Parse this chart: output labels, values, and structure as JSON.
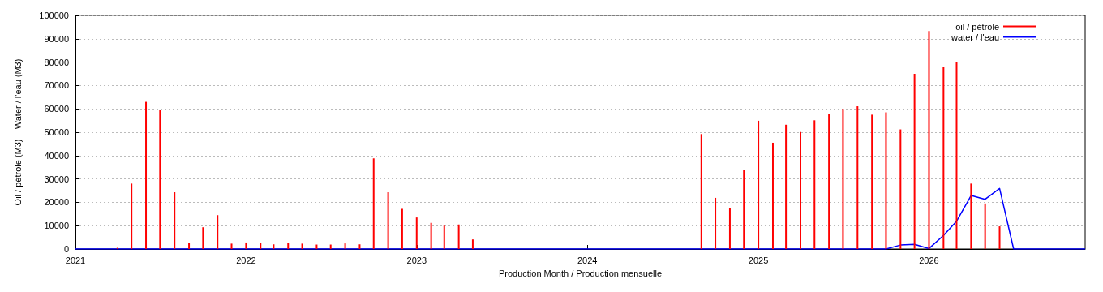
{
  "chart_data": {
    "type": "bar",
    "xlabel": "Production Month / Production mensuelle",
    "ylabel": "Oil / pétrole (M3) – Water / l'eau (M3)",
    "xlim": [
      "2021-01",
      "2026-12"
    ],
    "xticks": [
      "2021",
      "2022",
      "2023",
      "2024",
      "2025",
      "2026"
    ],
    "ylim": [
      0,
      100000
    ],
    "yticks": [
      0,
      10000,
      20000,
      30000,
      40000,
      50000,
      60000,
      70000,
      80000,
      90000,
      100000
    ],
    "grid": "y",
    "legend": "top right",
    "series": [
      {
        "name": "oil / pétrole",
        "color": "#ff0000",
        "x": [
          "2021-04",
          "2021-05",
          "2021-06",
          "2021-07",
          "2021-08",
          "2021-09",
          "2021-10",
          "2021-11",
          "2021-12",
          "2022-01",
          "2022-02",
          "2022-03",
          "2022-04",
          "2022-05",
          "2022-06",
          "2022-07",
          "2022-08",
          "2022-09",
          "2022-10",
          "2022-11",
          "2022-12",
          "2023-01",
          "2023-02",
          "2023-03",
          "2023-04",
          "2023-05",
          "2024-09",
          "2024-10",
          "2024-11",
          "2024-12",
          "2025-01",
          "2025-02",
          "2025-03",
          "2025-04",
          "2025-05",
          "2025-06",
          "2025-07",
          "2025-08",
          "2025-09",
          "2025-10",
          "2025-11",
          "2025-12",
          "2026-01",
          "2026-02",
          "2026-03",
          "2026-04",
          "2026-05",
          "2026-06"
        ],
        "values": [
          500,
          28000,
          63000,
          59700,
          24300,
          2500,
          9300,
          14500,
          2300,
          2800,
          2600,
          2000,
          2600,
          2300,
          1900,
          1900,
          2400,
          2000,
          38800,
          24300,
          17200,
          13500,
          11200,
          10000,
          10500,
          4100,
          49200,
          21900,
          17500,
          33800,
          54900,
          45500,
          53200,
          50100,
          55100,
          57800,
          60000,
          61100,
          57500,
          58500,
          51200,
          75000,
          93300,
          78100,
          80200,
          28000,
          19500,
          9700
        ]
      },
      {
        "name": "water / l'eau",
        "type": "line",
        "color": "#0000ff",
        "x": [
          "2021-01",
          "2025-10",
          "2025-11",
          "2025-12",
          "2026-01",
          "2026-02",
          "2026-03",
          "2026-04",
          "2026-05",
          "2026-06",
          "2026-07",
          "2026-12"
        ],
        "values": [
          0,
          0,
          1700,
          2000,
          200,
          5800,
          11900,
          22900,
          21300,
          25900,
          0,
          0
        ]
      }
    ]
  }
}
